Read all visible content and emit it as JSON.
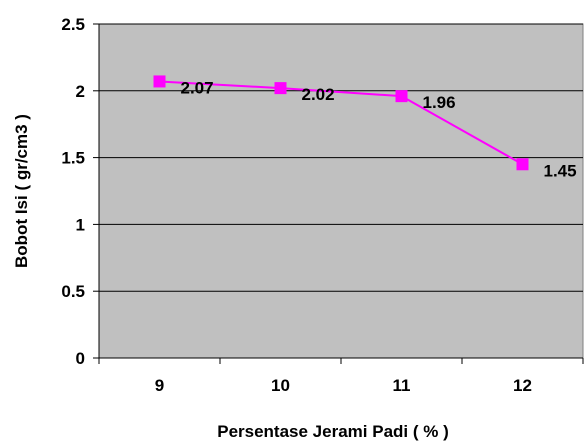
{
  "chart_data": {
    "type": "line",
    "title": "",
    "xlabel": "Persentase Jerami Padi ( % )",
    "ylabel": "Bobot Isi ( gr/cm3 )",
    "categories": [
      "9",
      "10",
      "11",
      "12"
    ],
    "series": [
      {
        "values": [
          2.07,
          2.02,
          1.96,
          1.45
        ],
        "data_labels": [
          "2.07",
          "2.02",
          "1.96",
          "1.45"
        ],
        "color": "#FF00FF",
        "marker": "square"
      }
    ],
    "ylim": [
      0,
      2.5
    ],
    "yticks": [
      0,
      0.5,
      1,
      1.5,
      2,
      2.5
    ],
    "ytick_labels": [
      "0",
      "0.5",
      "1",
      "1.5",
      "2",
      "2.5"
    ],
    "grid": true,
    "legend": "none",
    "plot_background": "#C0C0C0"
  }
}
